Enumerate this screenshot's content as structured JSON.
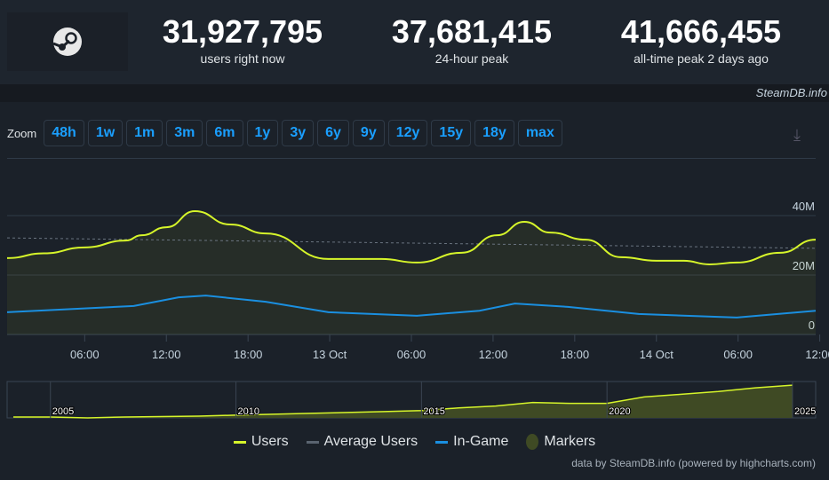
{
  "header": {
    "stats": [
      {
        "value": "31,927,795",
        "label": "users right now"
      },
      {
        "value": "37,681,415",
        "label": "24-hour peak"
      },
      {
        "value": "41,666,455",
        "label": "all-time peak 2 days ago"
      }
    ],
    "brand": "SteamDB.info"
  },
  "zoom": {
    "label": "Zoom",
    "buttons": [
      "48h",
      "1w",
      "1m",
      "3m",
      "6m",
      "1y",
      "3y",
      "6y",
      "9y",
      "12y",
      "15y",
      "18y",
      "max"
    ]
  },
  "colors": {
    "users": "#d6f52a",
    "average": "#5a6470",
    "ingame": "#1a8fe0",
    "markers": "#3f4a24"
  },
  "chart_data": {
    "type": "line",
    "xunit": "hours since 12 Oct 00:00",
    "xlim": [
      0.3,
      59.7
    ],
    "ylim": [
      0,
      50
    ],
    "yunit": "millions",
    "yticks": [
      {
        "v": 0,
        "label": "0"
      },
      {
        "v": 20,
        "label": "20M"
      },
      {
        "v": 40,
        "label": "40M"
      }
    ],
    "xticks": [
      {
        "v": 6,
        "label": "06:00"
      },
      {
        "v": 12,
        "label": "12:00"
      },
      {
        "v": 18,
        "label": "18:00"
      },
      {
        "v": 24,
        "label": "13 Oct"
      },
      {
        "v": 30,
        "label": "06:00"
      },
      {
        "v": 36,
        "label": "12:00"
      },
      {
        "v": 42,
        "label": "18:00"
      },
      {
        "v": 48,
        "label": "14 Oct"
      },
      {
        "v": 54,
        "label": "06:00"
      },
      {
        "v": 60,
        "label": "12:00"
      }
    ],
    "series": [
      {
        "name": "Users",
        "x": [
          0.3,
          3,
          6,
          9,
          10.2,
          12,
          14.1,
          16.7,
          19.3,
          23.9,
          27.8,
          30.4,
          33.7,
          36.3,
          38.3,
          40.2,
          42.8,
          45.4,
          48,
          50,
          51.9,
          53.9,
          57.1,
          59.7
        ],
        "values": [
          25.7,
          27.3,
          29.3,
          31.6,
          33.4,
          36.1,
          41.5,
          37,
          34,
          25.4,
          25.4,
          24.2,
          27.5,
          33.4,
          37.9,
          34.3,
          31.9,
          26,
          24.8,
          24.8,
          23.6,
          24.2,
          27.5,
          31.9
        ]
      },
      {
        "name": "Average Users",
        "x": [
          0.3,
          59.7
        ],
        "values": [
          32.5,
          29
        ]
      },
      {
        "name": "In-Game",
        "x": [
          0.3,
          9.6,
          12.9,
          14.9,
          19.3,
          23.9,
          30.4,
          35,
          37.6,
          41.5,
          46.7,
          53.9,
          59.7
        ],
        "values": [
          7.5,
          9.6,
          12.5,
          13.1,
          11,
          7.5,
          6.3,
          8,
          10.4,
          9.3,
          6.9,
          5.7,
          8
        ]
      }
    ],
    "navigator": {
      "ticks": [
        "2005",
        "2010",
        "2015",
        "2020",
        "2025"
      ],
      "years": [
        2004,
        2005,
        2006,
        2007,
        2008,
        2009,
        2010,
        2011,
        2012,
        2013,
        2014,
        2015,
        2016,
        2017,
        2018,
        2019,
        2020,
        2021,
        2022,
        2023,
        2024,
        2025
      ],
      "values": [
        1,
        1,
        0,
        1,
        1.5,
        2,
        3,
        4,
        5,
        6,
        7,
        8,
        11,
        13,
        17,
        16,
        16,
        23,
        26,
        29,
        33,
        36
      ]
    },
    "legend": [
      "Users",
      "Average Users",
      "In-Game",
      "Markers"
    ]
  },
  "credit": "data by SteamDB.info (powered by highcharts.com)"
}
